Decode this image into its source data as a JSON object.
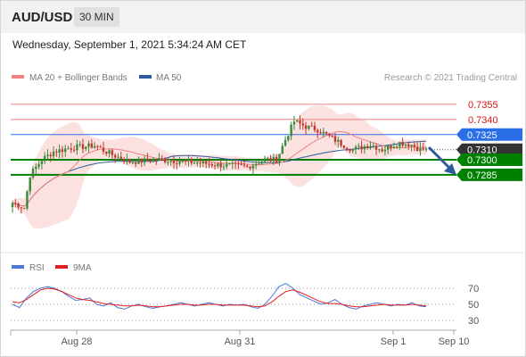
{
  "header": {
    "symbol": "AUD/USD",
    "timeframe": "30 MIN"
  },
  "timestamp": "Wednesday, September 1, 2021 5:34:24 AM CET",
  "legend": {
    "items": [
      {
        "label": "MA 20 + Bollinger Bands",
        "color": "#f08080"
      },
      {
        "label": "MA 50",
        "color": "#2f5b9e"
      }
    ],
    "credit": "Research © 2021 Trading Central"
  },
  "colors": {
    "up": "#3a8a3a",
    "down": "#c0392b",
    "resistance": "#f08080",
    "pivot": "#2a6ee8",
    "support": "#008000",
    "price": "#333333",
    "band": "#fcdcdc"
  },
  "chart_data": [
    {
      "type": "candlestick",
      "title": "AUD/USD 30 MIN",
      "ylim": [
        0.723,
        0.737
      ],
      "x_ticks": [
        "Aug 28",
        "Aug 31",
        "Sep 1",
        "Sep 10"
      ],
      "levels": [
        {
          "value": 0.7355,
          "label": "0.7355",
          "kind": "resistance"
        },
        {
          "value": 0.734,
          "label": "0.7340",
          "kind": "resistance"
        },
        {
          "value": 0.7325,
          "label": "0.7325",
          "kind": "pivot"
        },
        {
          "value": 0.731,
          "label": "0.7310",
          "kind": "price"
        },
        {
          "value": 0.73,
          "label": "0.7300",
          "kind": "support"
        },
        {
          "value": 0.7285,
          "label": "0.7285",
          "kind": "support"
        }
      ],
      "anchors": [
        {
          "i": 0,
          "p": 0.7257
        },
        {
          "i": 2,
          "p": 0.7255
        },
        {
          "i": 4,
          "p": 0.7252
        },
        {
          "i": 6,
          "p": 0.7285
        },
        {
          "i": 10,
          "p": 0.73
        },
        {
          "i": 14,
          "p": 0.7308
        },
        {
          "i": 20,
          "p": 0.7312
        },
        {
          "i": 28,
          "p": 0.7314
        },
        {
          "i": 34,
          "p": 0.7305
        },
        {
          "i": 40,
          "p": 0.7298
        },
        {
          "i": 50,
          "p": 0.73
        },
        {
          "i": 60,
          "p": 0.7298
        },
        {
          "i": 70,
          "p": 0.7295
        },
        {
          "i": 80,
          "p": 0.7293
        },
        {
          "i": 86,
          "p": 0.73
        },
        {
          "i": 90,
          "p": 0.73
        },
        {
          "i": 93,
          "p": 0.732
        },
        {
          "i": 96,
          "p": 0.7338
        },
        {
          "i": 100,
          "p": 0.7333
        },
        {
          "i": 104,
          "p": 0.733
        },
        {
          "i": 108,
          "p": 0.7323
        },
        {
          "i": 112,
          "p": 0.7316
        },
        {
          "i": 116,
          "p": 0.731
        },
        {
          "i": 122,
          "p": 0.7315
        },
        {
          "i": 126,
          "p": 0.731
        },
        {
          "i": 132,
          "p": 0.7317
        },
        {
          "i": 136,
          "p": 0.7315
        },
        {
          "i": 139,
          "p": 0.731
        },
        {
          "i": 141,
          "p": 0.7311
        }
      ],
      "candle_count": 142,
      "forecast_arrow": "down toward 0.7300"
    },
    {
      "type": "line",
      "title": "RSI",
      "ylim": [
        25,
        85
      ],
      "y_ticks": [
        70,
        50,
        30
      ],
      "series": [
        {
          "name": "RSI",
          "color": "#4a78d8",
          "values": [
            50,
            46,
            58,
            66,
            70,
            72,
            70,
            66,
            60,
            55,
            56,
            58,
            50,
            48,
            52,
            46,
            44,
            48,
            50,
            47,
            45,
            47,
            48,
            50,
            52,
            50,
            48,
            50,
            52,
            50,
            48,
            50,
            49,
            50,
            47,
            45,
            50,
            60,
            72,
            76,
            70,
            62,
            58,
            54,
            50,
            52,
            56,
            50,
            46,
            44,
            48,
            50,
            52,
            50,
            48,
            50,
            49,
            52,
            48,
            47
          ]
        },
        {
          "name": "9MA",
          "color": "#e02020",
          "values": [
            53,
            52,
            56,
            62,
            68,
            70,
            69,
            66,
            62,
            58,
            56,
            55,
            53,
            51,
            50,
            49,
            48,
            48,
            49,
            48,
            47,
            47,
            48,
            49,
            50,
            50,
            49,
            49,
            50,
            50,
            49,
            49,
            49,
            49,
            48,
            47,
            48,
            53,
            60,
            66,
            68,
            65,
            61,
            57,
            53,
            51,
            51,
            50,
            48,
            47,
            47,
            48,
            49,
            50,
            49,
            49,
            49,
            50,
            49,
            48
          ]
        }
      ]
    }
  ]
}
